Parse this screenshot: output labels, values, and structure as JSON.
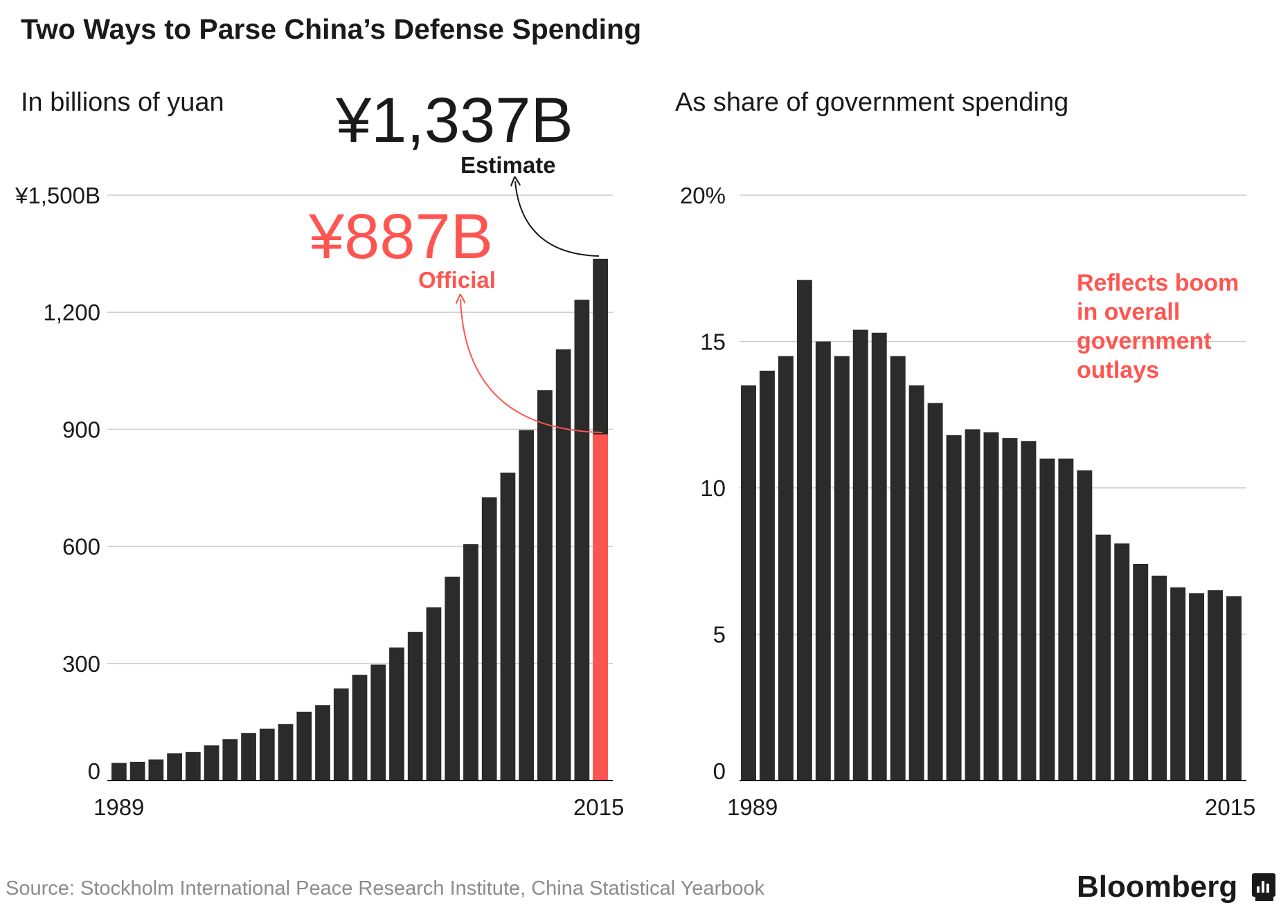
{
  "title": "Two Ways to Parse China’s Defense Spending",
  "source": "Source: Stockholm International Peace Research Institute, China Statistical Yearbook",
  "brand": "Bloomberg",
  "colors": {
    "bar": "#2b2b2b",
    "accent": "#ff5550",
    "grid": "#cccccc"
  },
  "chart_data": [
    {
      "type": "bar",
      "subtitle": "In billions of yuan",
      "x": [
        1989,
        1990,
        1991,
        1992,
        1993,
        1994,
        1995,
        1996,
        1997,
        1998,
        1999,
        2000,
        2001,
        2002,
        2003,
        2004,
        2005,
        2006,
        2007,
        2008,
        2009,
        2010,
        2011,
        2012,
        2013,
        2014,
        2015
      ],
      "values": [
        45,
        48,
        54,
        70,
        73,
        90,
        106,
        122,
        133,
        145,
        176,
        193,
        236,
        271,
        297,
        341,
        381,
        444,
        522,
        606,
        726,
        789,
        898,
        1000,
        1105,
        1232,
        1337
      ],
      "official_2015": 887,
      "ylim": [
        0,
        1500
      ],
      "yticks": [
        0,
        300,
        600,
        900,
        1200,
        1500
      ],
      "ytick_labels": [
        "0",
        "300",
        "600",
        "900",
        "1,200",
        "¥1,500B"
      ],
      "xtick_labels": [
        "1989",
        "2015"
      ],
      "annotations": {
        "estimate_value": "¥1,337B",
        "estimate_label": "Estimate",
        "official_value": "¥887B",
        "official_label": "Official"
      }
    },
    {
      "type": "bar",
      "subtitle": "As share of government spending",
      "x": [
        1989,
        1990,
        1991,
        1992,
        1993,
        1994,
        1995,
        1996,
        1997,
        1998,
        1999,
        2000,
        2001,
        2002,
        2003,
        2004,
        2005,
        2006,
        2007,
        2008,
        2009,
        2010,
        2011,
        2012,
        2013,
        2014,
        2015
      ],
      "values": [
        13.5,
        14.0,
        14.5,
        17.1,
        15.0,
        14.5,
        15.4,
        15.3,
        14.5,
        13.5,
        12.9,
        11.8,
        12.0,
        11.9,
        11.7,
        11.6,
        11.0,
        11.0,
        10.6,
        8.4,
        8.1,
        7.4,
        7.0,
        6.6,
        6.4,
        6.5,
        6.3
      ],
      "ylim": [
        0,
        20
      ],
      "yticks": [
        0,
        5,
        10,
        15,
        20
      ],
      "ytick_labels": [
        "0",
        "5",
        "10",
        "15",
        "20%"
      ],
      "xtick_labels": [
        "1989",
        "2015"
      ],
      "annotations": {
        "note_lines": [
          "Reflects boom",
          "in overall",
          "government",
          "outlays"
        ]
      }
    }
  ]
}
